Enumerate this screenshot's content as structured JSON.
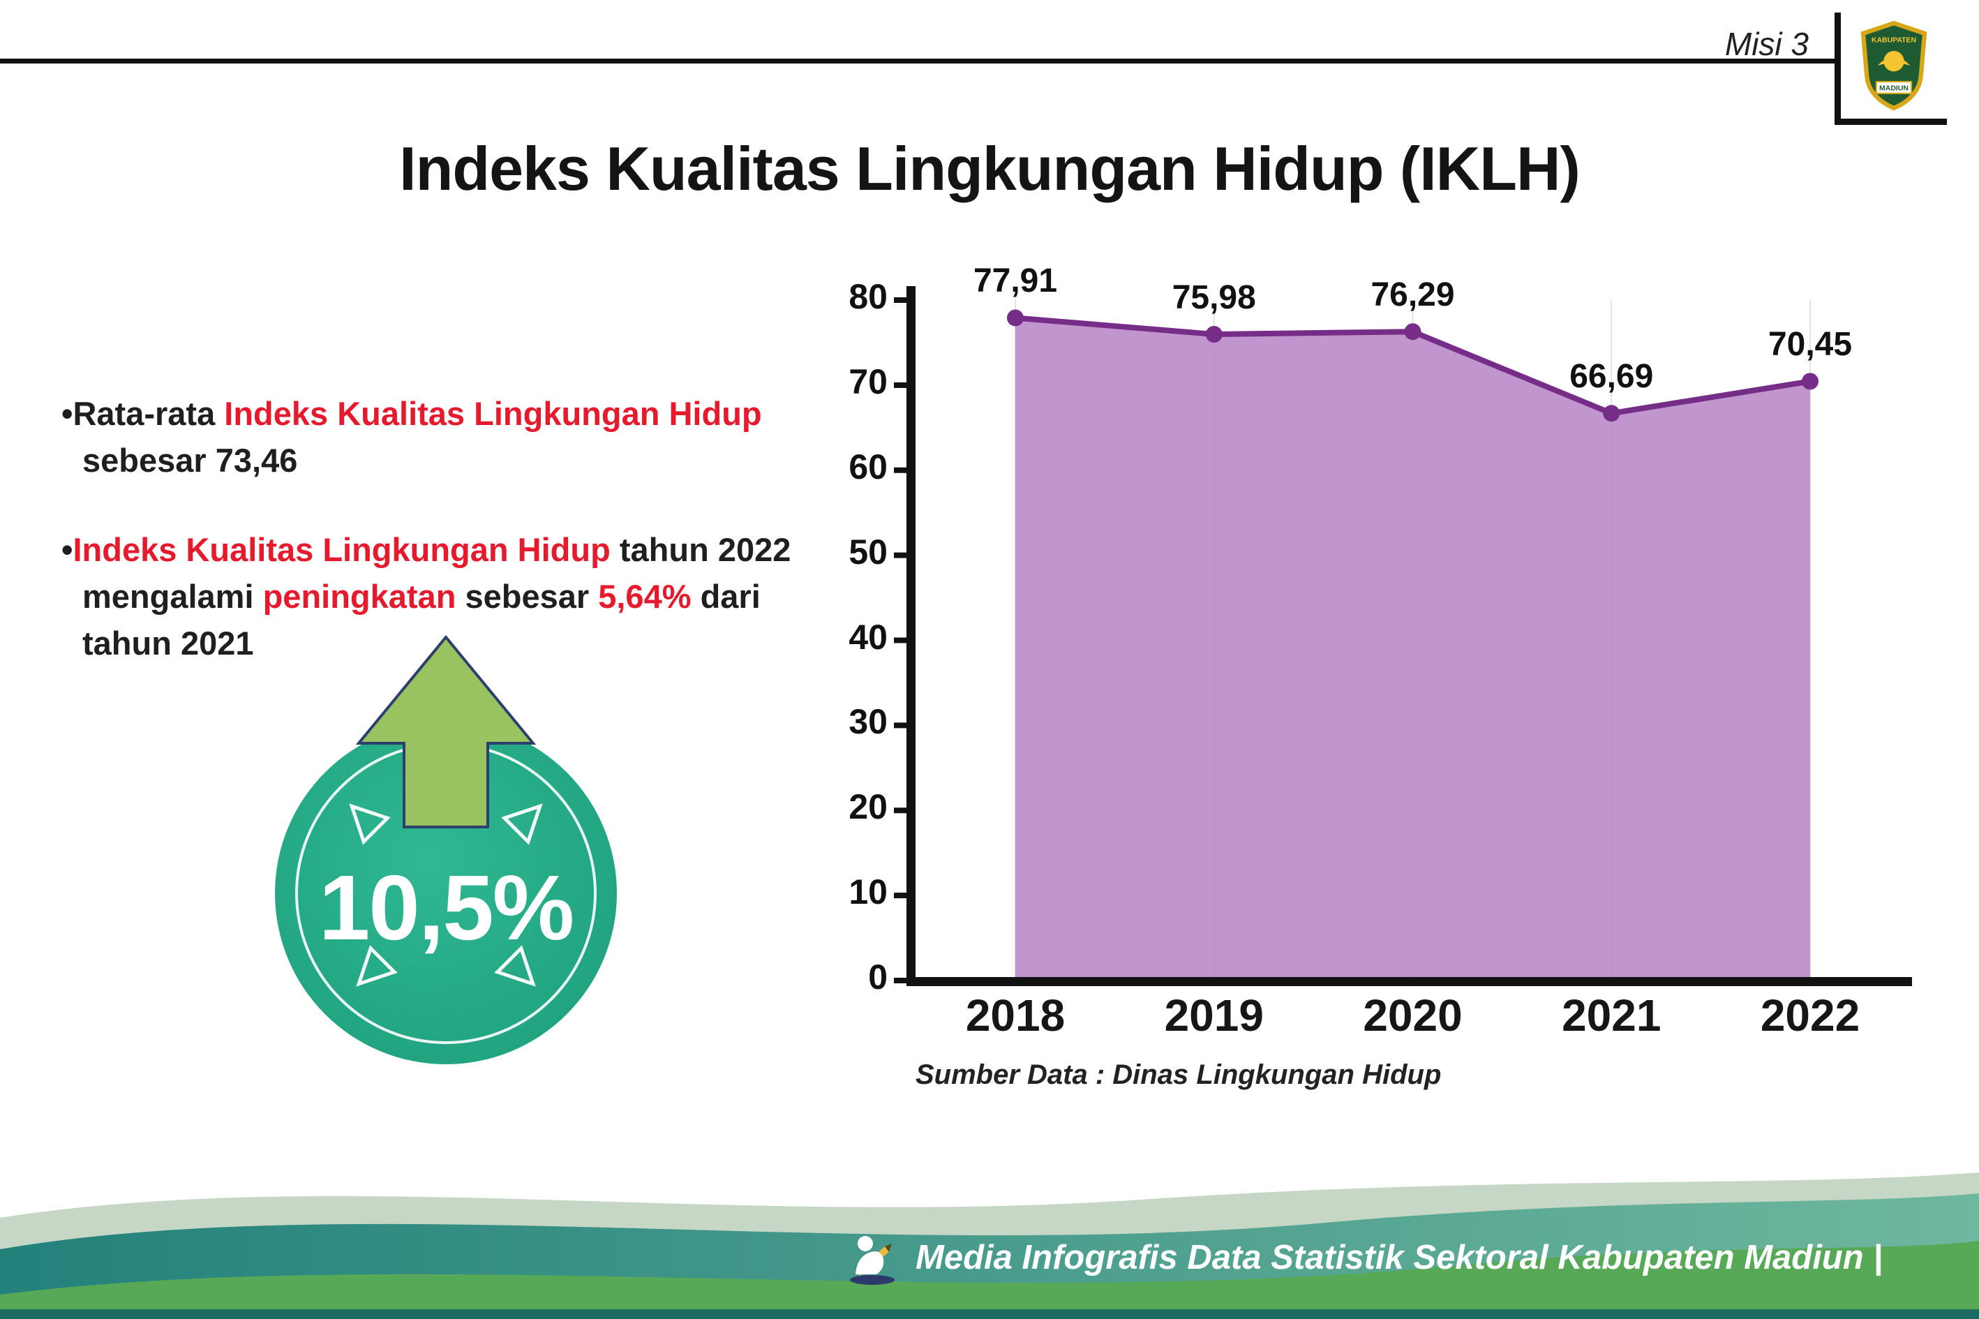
{
  "header": {
    "misi_label": "Misi 3",
    "title": "Indeks Kualitas Lingkungan Hidup (IKLH)",
    "logo_text_top": "KABUPATEN",
    "logo_text_bottom": "MADIUN"
  },
  "bullets": {
    "marker": "•",
    "item1": {
      "seg1": "Rata-rata ",
      "seg2": "Indeks Kualitas Lingkungan Hidup",
      "seg3": "sebesar 73,46"
    },
    "item2": {
      "seg1": "Indeks Kualitas Lingkungan Hidup",
      "seg2": " tahun 2022",
      "seg3": "mengalami ",
      "seg4": "peningkatan",
      "seg5": " sebesar ",
      "seg6": "5,64%",
      "seg7": " dari",
      "seg8": "tahun 2021"
    }
  },
  "badge": {
    "value": "10,5%",
    "circle_color": "#23ab8c",
    "arrow_color": "#99c361"
  },
  "chart_data": {
    "type": "area",
    "categories": [
      "2018",
      "2019",
      "2020",
      "2021",
      "2022"
    ],
    "values": [
      77.91,
      75.98,
      76.29,
      66.69,
      70.45
    ],
    "value_labels": [
      "77,91",
      "75,98",
      "76,29",
      "66,69",
      "70,45"
    ],
    "title": "",
    "xlabel": "",
    "ylabel": "",
    "ylim": [
      0,
      80
    ],
    "ytick_step": 10,
    "grid": "vertical-faint",
    "legend": "none",
    "area_color": "#b886c6",
    "line_color": "#762d88",
    "source": "Sumber Data : Dinas Lingkungan Hidup"
  },
  "footer": {
    "credit": "Media Infografis Data Statistik Sektoral Kabupaten Madiun |"
  }
}
